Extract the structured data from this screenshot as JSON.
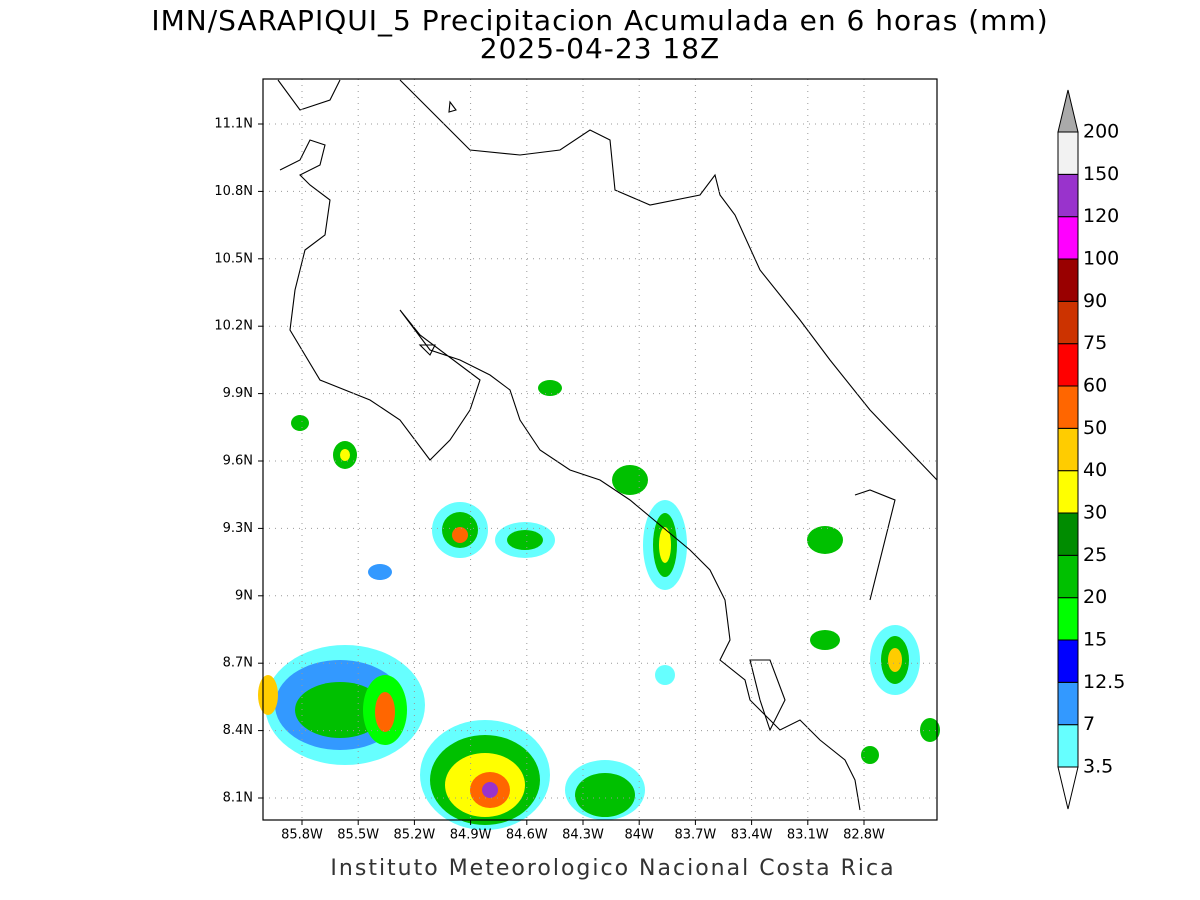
{
  "title": "IMN/SARAPIQUI_5 Precipitacion Acumulada en 6 horas (mm)",
  "subtitle": "2025-04-23 18Z",
  "lat_labels": [
    "11.1N",
    "10.8N",
    "10.5N",
    "10.2N",
    "9.9N",
    "9.6N",
    "9.3N",
    "9N",
    "8.7N",
    "8.4N",
    "8.1N"
  ],
  "lon_labels": [
    "85.8W",
    "85.5W",
    "85.2W",
    "84.9W",
    "84.6W",
    "84.3W",
    "84W",
    "83.7W",
    "83.4W",
    "83.1W",
    "82.8W"
  ],
  "colorbar": {
    "levels": [
      3.5,
      7,
      12.5,
      15,
      20,
      25,
      30,
      40,
      50,
      60,
      75,
      90,
      100,
      120,
      150,
      200
    ],
    "colors": [
      "#66ffff",
      "#3399ff",
      "#0000ff",
      "#00ff00",
      "#00c000",
      "#008c00",
      "#ffff00",
      "#ffcc00",
      "#ff6600",
      "#ff0000",
      "#cc3300",
      "#990000",
      "#ff00ff",
      "#9933cc",
      "#f2f2f2"
    ],
    "over_color": "#aaaaaa",
    "under_color": "#ffffff"
  },
  "footer": "Instituto Meteorologico Nacional Costa Rica"
}
